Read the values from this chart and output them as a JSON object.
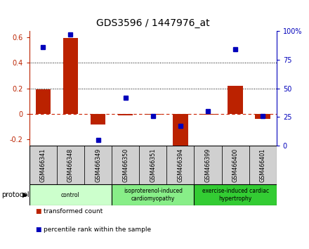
{
  "title": "GDS3596 / 1447976_at",
  "samples": [
    "GSM466341",
    "GSM466348",
    "GSM466349",
    "GSM466350",
    "GSM466351",
    "GSM466394",
    "GSM466399",
    "GSM466400",
    "GSM466401"
  ],
  "bar_values": [
    0.19,
    0.595,
    -0.085,
    -0.012,
    -0.005,
    -0.26,
    -0.005,
    0.22,
    -0.04
  ],
  "scatter_percent": [
    86,
    97,
    5,
    42,
    26,
    17,
    30,
    84,
    26
  ],
  "ylim_left": [
    -0.25,
    0.65
  ],
  "ylim_right": [
    0,
    100
  ],
  "yticks_left": [
    -0.2,
    0.0,
    0.2,
    0.4,
    0.6
  ],
  "ytick_labels_left": [
    "-0.2",
    "0",
    "0.2",
    "0.4",
    "0.6"
  ],
  "yticks_right": [
    0,
    25,
    50,
    75,
    100
  ],
  "ytick_labels_right": [
    "0",
    "25",
    "50",
    "75",
    "100%"
  ],
  "hlines": [
    0.2,
    0.4
  ],
  "bar_color": "#bb2200",
  "scatter_color": "#0000bb",
  "zero_line_color": "#cc2200",
  "bg_color": "#ffffff",
  "protocol_groups": [
    {
      "label": "control",
      "start": 0,
      "end": 3,
      "color": "#ccffcc"
    },
    {
      "label": "isoproterenol-induced\ncardiomyopathy",
      "start": 3,
      "end": 6,
      "color": "#88ee88"
    },
    {
      "label": "exercise-induced cardiac\nhypertrophy",
      "start": 6,
      "end": 9,
      "color": "#33cc33"
    }
  ],
  "legend_items": [
    {
      "label": "transformed count",
      "color": "#bb2200"
    },
    {
      "label": "percentile rank within the sample",
      "color": "#0000bb"
    }
  ],
  "protocol_label": "protocol",
  "title_fontsize": 10
}
